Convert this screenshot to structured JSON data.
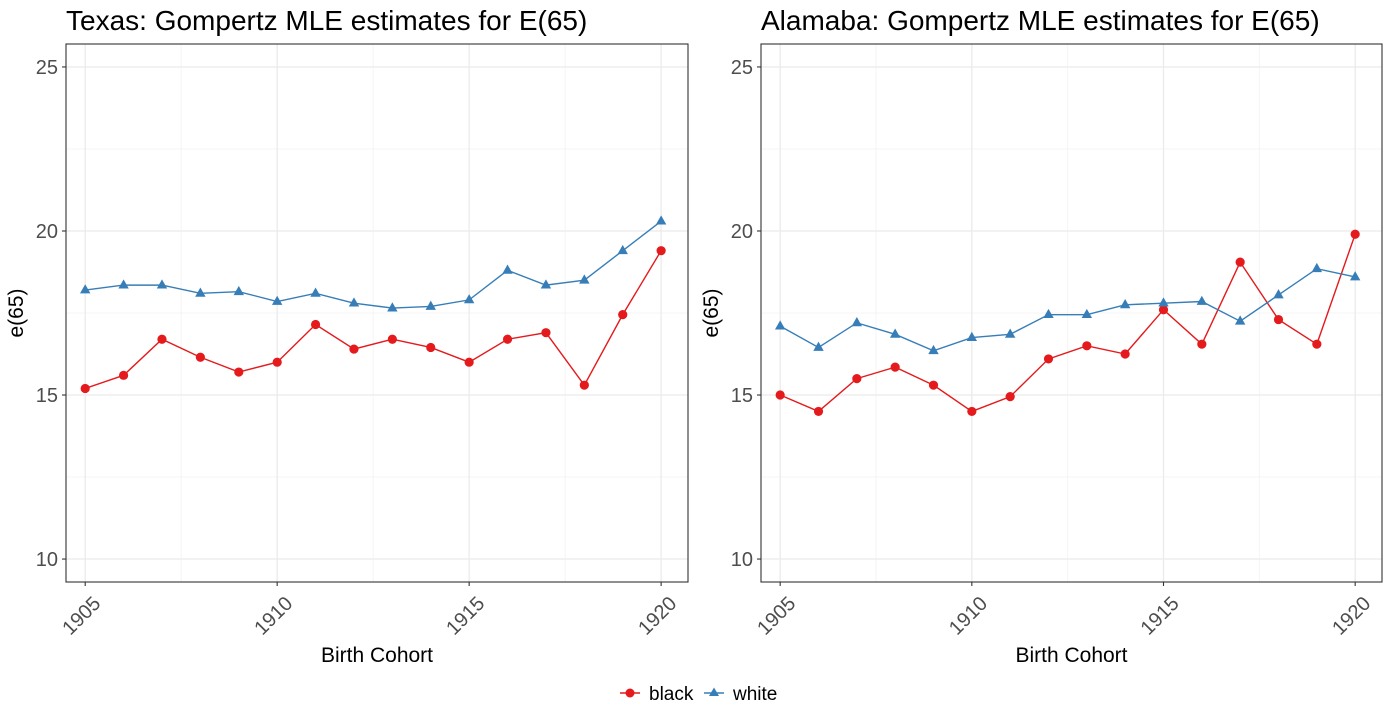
{
  "chart_data": [
    {
      "type": "line",
      "title": "Texas: Gompertz MLE estimates for E(65)",
      "xlabel": "Birth Cohort",
      "ylabel": "e(65)",
      "x": [
        1905,
        1906,
        1907,
        1908,
        1909,
        1910,
        1911,
        1912,
        1913,
        1914,
        1915,
        1916,
        1917,
        1918,
        1919,
        1920
      ],
      "xlim": [
        1904.5,
        1920.7
      ],
      "ylim": [
        9.3,
        25.7
      ],
      "xticks": [
        1905,
        1910,
        1915,
        1920
      ],
      "yticks": [
        10,
        15,
        20,
        25
      ],
      "grid": true,
      "series": [
        {
          "name": "black",
          "values": [
            15.2,
            15.6,
            16.7,
            16.15,
            15.7,
            16.0,
            17.15,
            16.4,
            16.7,
            16.45,
            16.0,
            16.7,
            16.9,
            15.3,
            17.45,
            19.4
          ]
        },
        {
          "name": "white",
          "values": [
            18.2,
            18.35,
            18.35,
            18.1,
            18.15,
            17.85,
            18.1,
            17.8,
            17.65,
            17.7,
            17.9,
            18.8,
            18.35,
            18.5,
            19.4,
            20.3
          ]
        }
      ]
    },
    {
      "type": "line",
      "title": "Alamaba: Gompertz MLE estimates for E(65)",
      "xlabel": "Birth Cohort",
      "ylabel": "e(65)",
      "x": [
        1905,
        1906,
        1907,
        1908,
        1909,
        1910,
        1911,
        1912,
        1913,
        1914,
        1915,
        1916,
        1917,
        1918,
        1919,
        1920
      ],
      "xlim": [
        1904.5,
        1920.7
      ],
      "ylim": [
        9.3,
        25.7
      ],
      "xticks": [
        1905,
        1910,
        1915,
        1920
      ],
      "yticks": [
        10,
        15,
        20,
        25
      ],
      "grid": true,
      "series": [
        {
          "name": "black",
          "values": [
            15.0,
            14.5,
            15.5,
            15.85,
            15.3,
            14.5,
            14.95,
            16.1,
            16.5,
            16.25,
            17.6,
            16.55,
            19.05,
            17.3,
            16.55,
            19.9
          ]
        },
        {
          "name": "white",
          "values": [
            17.1,
            16.45,
            17.2,
            16.85,
            16.35,
            16.75,
            16.85,
            17.45,
            17.45,
            17.75,
            17.8,
            17.85,
            17.25,
            18.05,
            18.85,
            18.6
          ]
        }
      ]
    }
  ],
  "legend": {
    "position": "bottom",
    "items": [
      {
        "label": "black",
        "color": "#e41a1c",
        "shape": "circle"
      },
      {
        "label": "white",
        "color": "#377eb8",
        "shape": "triangle"
      }
    ]
  }
}
